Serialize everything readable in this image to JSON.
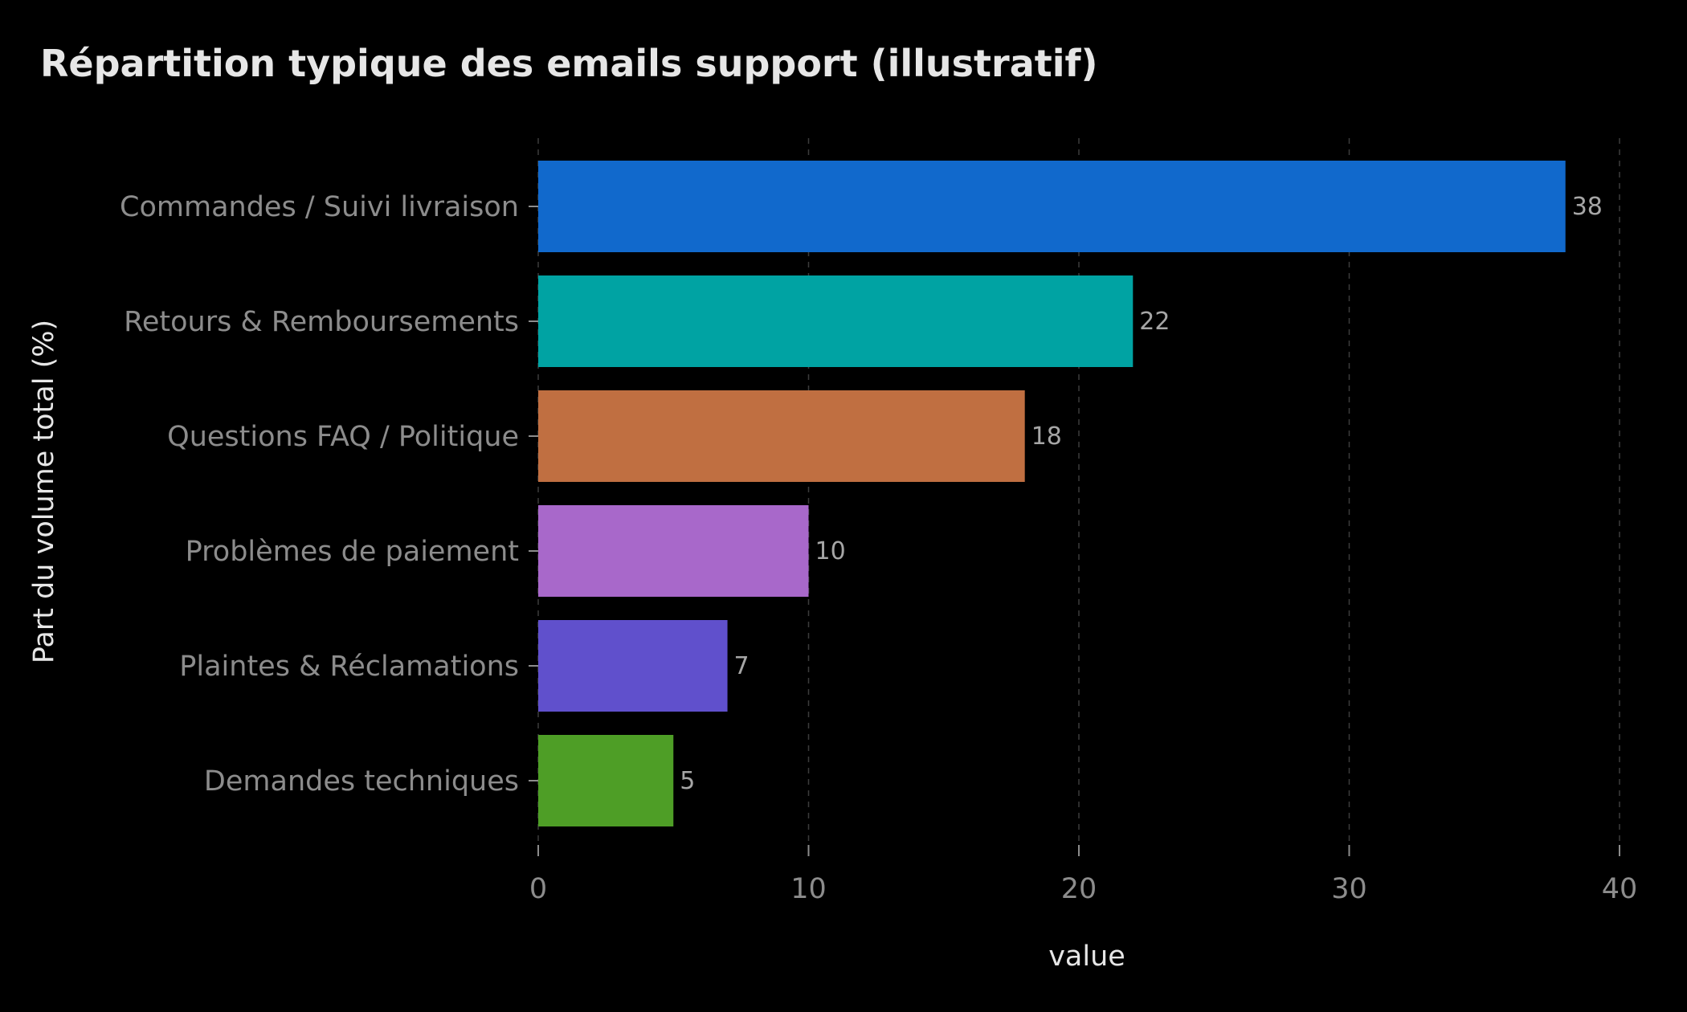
{
  "chart_data": {
    "type": "bar",
    "orientation": "horizontal",
    "title": "Répartition typique des emails support (illustratif)",
    "xlabel": "value",
    "ylabel": "Part du volume total (%)",
    "categories": [
      "Commandes / Suivi livraison",
      "Retours & Remboursements",
      "Questions FAQ / Politique",
      "Problèmes de paiement",
      "Plaintes & Réclamations",
      "Demandes techniques"
    ],
    "values": [
      38,
      22,
      18,
      10,
      7,
      5
    ],
    "colors": [
      "#1169cc",
      "#00a3a3",
      "#c06f41",
      "#a868ca",
      "#6050cc",
      "#4e9e26"
    ],
    "xlim": [
      0,
      40
    ],
    "xticks": [
      0,
      10,
      20,
      30,
      40
    ],
    "grid": "vertical dashed",
    "legend": "none",
    "background": "#000000"
  }
}
